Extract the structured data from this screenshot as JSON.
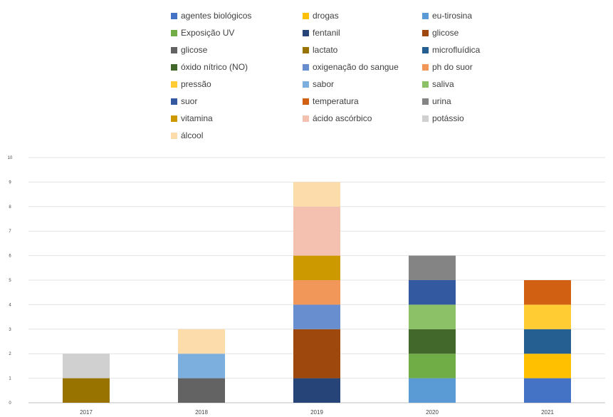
{
  "chart_data": {
    "type": "bar",
    "stacked": true,
    "categories": [
      "2017",
      "2018",
      "2019",
      "2020",
      "2021"
    ],
    "ylim": [
      0,
      10
    ],
    "yticks": [
      0,
      1,
      2,
      3,
      4,
      5,
      6,
      7,
      8,
      9,
      10
    ],
    "grid": true,
    "legend_position": "top",
    "series": [
      {
        "name": "agentes biológicos",
        "color": "#4472C4",
        "values": [
          0,
          0,
          0,
          0,
          1
        ]
      },
      {
        "name": "drogas",
        "color": "#FFC000",
        "values": [
          0,
          0,
          0,
          0,
          1
        ]
      },
      {
        "name": "eu-tirosina",
        "color": "#5B9BD5",
        "values": [
          0,
          0,
          0,
          1,
          0
        ]
      },
      {
        "name": "Exposição UV",
        "color": "#70AD47",
        "values": [
          0,
          0,
          0,
          1,
          0
        ]
      },
      {
        "name": "fentanil",
        "color": "#264478",
        "values": [
          0,
          0,
          1,
          0,
          0
        ]
      },
      {
        "name": "glicose",
        "color": "#9E480E",
        "values": [
          0,
          0,
          2,
          0,
          0
        ]
      },
      {
        "name": "glicose",
        "color": "#636363",
        "values": [
          0,
          1,
          0,
          0,
          0
        ]
      },
      {
        "name": "lactato",
        "color": "#997300",
        "values": [
          1,
          0,
          0,
          0,
          0
        ]
      },
      {
        "name": "microfluídica",
        "color": "#255E91",
        "values": [
          0,
          0,
          0,
          0,
          1
        ]
      },
      {
        "name": "óxido nítrico (NO)",
        "color": "#43682B",
        "values": [
          0,
          0,
          0,
          1,
          0
        ]
      },
      {
        "name": "oxigenação do sangue",
        "color": "#698ED0",
        "values": [
          0,
          0,
          1,
          0,
          0
        ]
      },
      {
        "name": "ph do suor",
        "color": "#F1975A",
        "values": [
          0,
          0,
          1,
          0,
          0
        ]
      },
      {
        "name": "pressão",
        "color": "#FFCD33",
        "values": [
          0,
          0,
          0,
          0,
          1
        ]
      },
      {
        "name": "sabor",
        "color": "#7CAFDD",
        "values": [
          0,
          1,
          0,
          0,
          0
        ]
      },
      {
        "name": "saliva",
        "color": "#8CC168",
        "values": [
          0,
          0,
          0,
          1,
          0
        ]
      },
      {
        "name": "suor",
        "color": "#335AA1",
        "values": [
          0,
          0,
          0,
          1,
          0
        ]
      },
      {
        "name": "temperatura",
        "color": "#D26012",
        "values": [
          0,
          0,
          0,
          0,
          1
        ]
      },
      {
        "name": "urina",
        "color": "#848484",
        "values": [
          0,
          0,
          0,
          1,
          0
        ]
      },
      {
        "name": "vitamina",
        "color": "#CC9A00",
        "values": [
          0,
          0,
          1,
          0,
          0
        ]
      },
      {
        "name": "ácido ascórbico",
        "color": "#F4C0B0",
        "values": [
          0,
          0,
          2,
          0,
          0
        ]
      },
      {
        "name": "potássio",
        "color": "#D0D0D0",
        "values": [
          1,
          0,
          0,
          0,
          0
        ]
      },
      {
        "name": "álcool",
        "color": "#FCDCAA",
        "values": [
          0,
          1,
          1,
          0,
          0
        ]
      }
    ]
  }
}
